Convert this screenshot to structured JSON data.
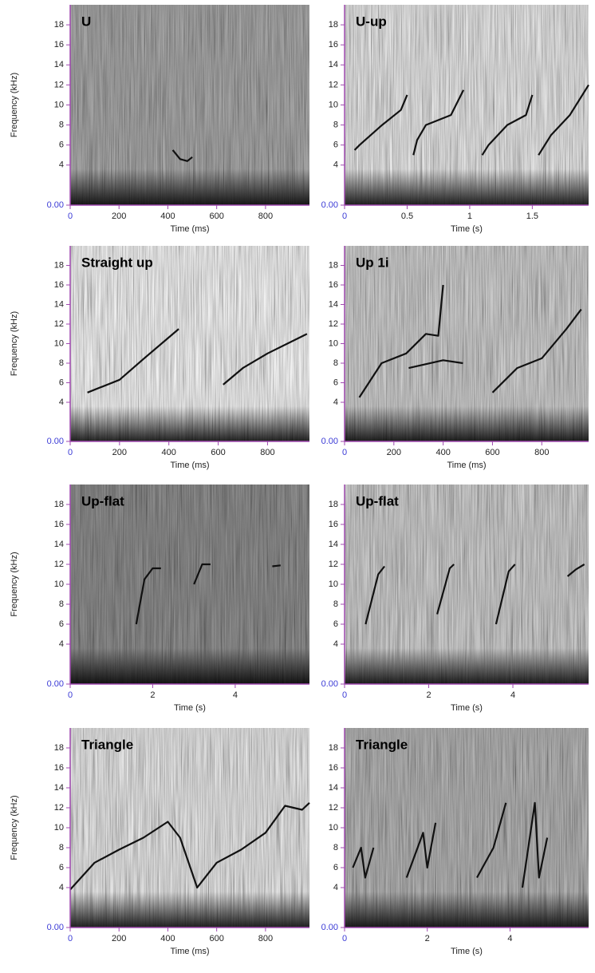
{
  "chart_data": [
    {
      "type": "spectrogram",
      "title": "U",
      "xlabel": "Time (ms)",
      "ylabel": "Frequency (kHz)",
      "xlim": [
        0,
        980
      ],
      "xticks": [
        0,
        200,
        400,
        600,
        800
      ],
      "ylim": [
        0,
        20
      ],
      "yticks": [
        {
          "value": 0,
          "label": "0.00"
        },
        4,
        6,
        8,
        10,
        12,
        14,
        16,
        18
      ],
      "darkness": 0.35,
      "contours": [
        {
          "x": [
            420,
            450,
            480,
            500
          ],
          "y": [
            5.5,
            4.6,
            4.4,
            4.8
          ]
        }
      ]
    },
    {
      "type": "spectrogram",
      "title": "U-up",
      "xlabel": "Time (s)",
      "xlim": [
        0,
        1.95
      ],
      "xticks": [
        0,
        0.5,
        1,
        1.5
      ],
      "ylim": [
        0,
        20
      ],
      "yticks": [
        {
          "value": 0,
          "label": "0.00"
        },
        4,
        6,
        8,
        10,
        12,
        14,
        16,
        18
      ],
      "darkness": 0.1,
      "contours": [
        {
          "x": [
            0.08,
            0.12,
            0.3,
            0.45,
            0.5,
            null,
            0.55,
            0.58,
            0.65,
            0.85,
            0.95,
            null,
            1.1,
            1.15,
            1.3,
            1.45,
            1.5,
            null,
            1.55,
            1.65,
            1.8,
            1.95
          ],
          "y": [
            5.5,
            6,
            8,
            9.5,
            11,
            null,
            5,
            6.5,
            8,
            9,
            11.5,
            null,
            5,
            6,
            8,
            9,
            11,
            null,
            5,
            7,
            9,
            12
          ]
        }
      ]
    },
    {
      "type": "spectrogram",
      "title": "Straight up",
      "xlabel": "Time (ms)",
      "ylabel": "Frequency (kHz)",
      "xlim": [
        0,
        970
      ],
      "xticks": [
        0,
        200,
        400,
        600,
        800
      ],
      "ylim": [
        0,
        20
      ],
      "yticks": [
        {
          "value": 0,
          "label": "0.00"
        },
        4,
        6,
        8,
        10,
        12,
        14,
        16,
        18
      ],
      "darkness": 0.05,
      "contours": [
        {
          "x": [
            70,
            200,
            300,
            440,
            null,
            620,
            700,
            800,
            960
          ],
          "y": [
            5,
            6.3,
            8.5,
            11.5,
            null,
            5.8,
            7.5,
            9,
            11
          ]
        }
      ]
    },
    {
      "type": "spectrogram",
      "title": "Up 1i",
      "xlabel": "Time (ms)",
      "xlim": [
        0,
        990
      ],
      "xticks": [
        0,
        200,
        400,
        600,
        800
      ],
      "ylim": [
        0,
        20
      ],
      "yticks": [
        {
          "value": 0,
          "label": "0.00"
        },
        4,
        6,
        8,
        10,
        12,
        14,
        16,
        18
      ],
      "darkness": 0.2,
      "contours": [
        {
          "x": [
            60,
            150,
            250,
            330,
            380,
            400,
            null,
            260,
            400,
            480,
            null,
            600,
            700,
            800,
            900,
            960
          ],
          "y": [
            4.5,
            8,
            9,
            11,
            10.8,
            16,
            null,
            7.5,
            8.3,
            8,
            null,
            5,
            7.5,
            8.5,
            11.5,
            13.5
          ]
        }
      ]
    },
    {
      "type": "spectrogram",
      "title": "Up-flat",
      "xlabel": "Time (s)",
      "ylabel": "Frequency (kHz)",
      "xlim": [
        0,
        5.8
      ],
      "xticks": [
        0,
        2,
        4
      ],
      "ylim": [
        0,
        20
      ],
      "yticks": [
        {
          "value": 0,
          "label": "0.00"
        },
        4,
        6,
        8,
        10,
        12,
        14,
        16,
        18
      ],
      "darkness": 0.45,
      "contours": [
        {
          "x": [
            1.6,
            1.8,
            2.0,
            2.2,
            null,
            3.0,
            3.2,
            3.4,
            null,
            4.9,
            5.1
          ],
          "y": [
            6,
            10.5,
            11.6,
            11.6,
            null,
            10,
            12,
            12,
            null,
            11.8,
            11.9
          ]
        }
      ]
    },
    {
      "type": "spectrogram",
      "title": "Up-flat",
      "xlabel": "Time (s)",
      "xlim": [
        0,
        5.8
      ],
      "xticks": [
        0,
        2,
        4
      ],
      "ylim": [
        0,
        20
      ],
      "yticks": [
        {
          "value": 0,
          "label": "0.00"
        },
        4,
        6,
        8,
        10,
        12,
        14,
        16,
        18
      ],
      "darkness": 0.2,
      "contours": [
        {
          "x": [
            0.5,
            0.8,
            0.95,
            null,
            2.2,
            2.5,
            2.6,
            null,
            3.6,
            3.9,
            4.05,
            null,
            5.3,
            5.5,
            5.7
          ],
          "y": [
            6,
            11,
            11.8,
            null,
            7,
            11.6,
            12,
            null,
            6,
            11.3,
            12,
            null,
            10.8,
            11.5,
            12
          ]
        }
      ]
    },
    {
      "type": "spectrogram",
      "title": "Triangle",
      "xlabel": "Time (ms)",
      "ylabel": "Frequency (kHz)",
      "xlim": [
        0,
        980
      ],
      "xticks": [
        0,
        200,
        400,
        600,
        800
      ],
      "ylim": [
        0,
        20
      ],
      "yticks": [
        {
          "value": 0,
          "label": "0.00"
        },
        4,
        6,
        8,
        10,
        12,
        14,
        16,
        18
      ],
      "darkness": 0.1,
      "contours": [
        {
          "x": [
            0,
            100,
            200,
            300,
            400,
            450,
            520,
            600,
            700,
            800,
            880,
            950,
            980
          ],
          "y": [
            3.8,
            6.5,
            7.8,
            9,
            10.6,
            9,
            4,
            6.5,
            7.8,
            9.5,
            12.2,
            11.8,
            12.5
          ]
        }
      ]
    },
    {
      "type": "spectrogram",
      "title": "Triangle",
      "xlabel": "Time (s)",
      "xlim": [
        0,
        5.9
      ],
      "xticks": [
        0,
        2,
        4
      ],
      "ylim": [
        0,
        20
      ],
      "yticks": [
        {
          "value": 0,
          "label": "0.00"
        },
        4,
        6,
        8,
        10,
        12,
        14,
        16,
        18
      ],
      "darkness": 0.3,
      "contours": [
        {
          "x": [
            0.2,
            0.4,
            0.5,
            0.7,
            null,
            1.5,
            1.9,
            2.0,
            2.2,
            null,
            3.2,
            3.6,
            3.9,
            null,
            4.3,
            4.6,
            4.7,
            4.9
          ],
          "y": [
            6,
            8,
            5,
            8,
            null,
            5,
            9.5,
            6,
            10.5,
            null,
            5,
            8,
            12.5,
            null,
            4,
            12.5,
            5,
            9
          ]
        }
      ]
    }
  ]
}
